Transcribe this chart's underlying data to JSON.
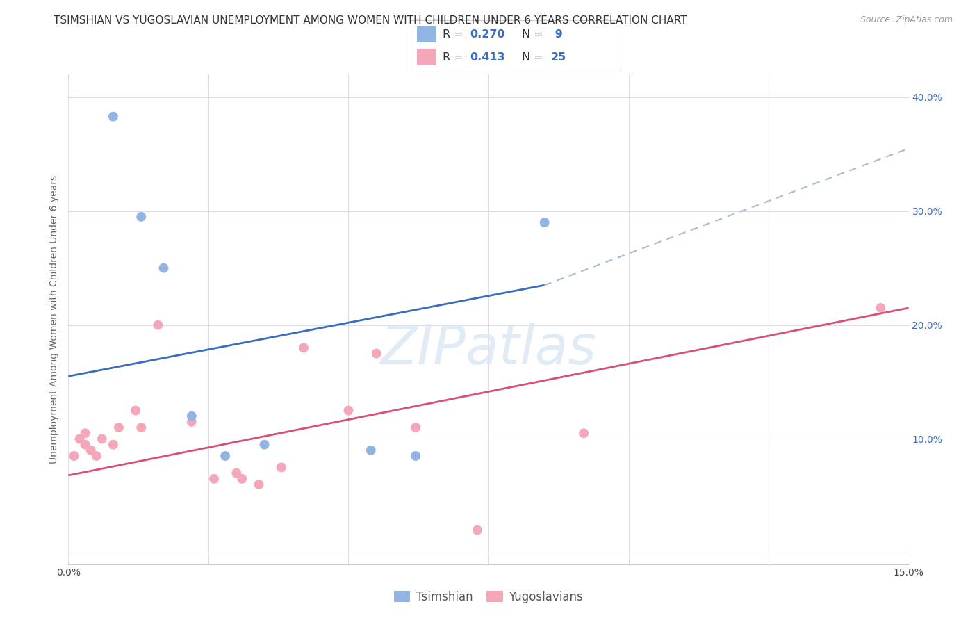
{
  "title": "TSIMSHIAN VS YUGOSLAVIAN UNEMPLOYMENT AMONG WOMEN WITH CHILDREN UNDER 6 YEARS CORRELATION CHART",
  "source": "Source: ZipAtlas.com",
  "ylabel": "Unemployment Among Women with Children Under 6 years",
  "watermark": "ZIPatlas",
  "x_min": 0.0,
  "x_max": 0.15,
  "y_min": -0.01,
  "y_max": 0.42,
  "x_ticks": [
    0.0,
    0.025,
    0.05,
    0.075,
    0.1,
    0.125,
    0.15
  ],
  "y_ticks": [
    0.0,
    0.1,
    0.2,
    0.3,
    0.4
  ],
  "tsimshian_color": "#92b4e3",
  "yugoslavian_color": "#f4a7b9",
  "tsimshian_line_color": "#3a6dbf",
  "yugoslavian_line_color": "#d94f7a",
  "dashed_line_color": "#a8b8d0",
  "tsimshian_R": 0.27,
  "tsimshian_N": 9,
  "yugoslavian_R": 0.413,
  "yugoslavian_N": 25,
  "tsimshian_points_x": [
    0.008,
    0.013,
    0.017,
    0.022,
    0.028,
    0.035,
    0.054,
    0.062,
    0.085
  ],
  "tsimshian_points_y": [
    0.383,
    0.295,
    0.25,
    0.12,
    0.085,
    0.095,
    0.09,
    0.085,
    0.29
  ],
  "yugoslavian_points_x": [
    0.001,
    0.002,
    0.003,
    0.003,
    0.004,
    0.005,
    0.006,
    0.008,
    0.009,
    0.012,
    0.013,
    0.016,
    0.022,
    0.026,
    0.03,
    0.031,
    0.034,
    0.038,
    0.042,
    0.05,
    0.055,
    0.062,
    0.073,
    0.092,
    0.145
  ],
  "yugoslavian_points_y": [
    0.085,
    0.1,
    0.095,
    0.105,
    0.09,
    0.085,
    0.1,
    0.095,
    0.11,
    0.125,
    0.11,
    0.2,
    0.115,
    0.065,
    0.07,
    0.065,
    0.06,
    0.075,
    0.18,
    0.125,
    0.175,
    0.11,
    0.02,
    0.105,
    0.215
  ],
  "tsimshian_line_x": [
    0.0,
    0.085
  ],
  "tsimshian_line_y": [
    0.155,
    0.235
  ],
  "dashed_line_x": [
    0.085,
    0.15
  ],
  "dashed_line_y": [
    0.235,
    0.355
  ],
  "yugoslavian_line_x": [
    0.0,
    0.15
  ],
  "yugoslavian_line_y": [
    0.068,
    0.215
  ],
  "background_color": "#ffffff",
  "grid_color": "#d8dde8",
  "marker_size": 100,
  "title_fontsize": 11,
  "axis_label_fontsize": 10,
  "tick_fontsize": 10,
  "source_fontsize": 9
}
